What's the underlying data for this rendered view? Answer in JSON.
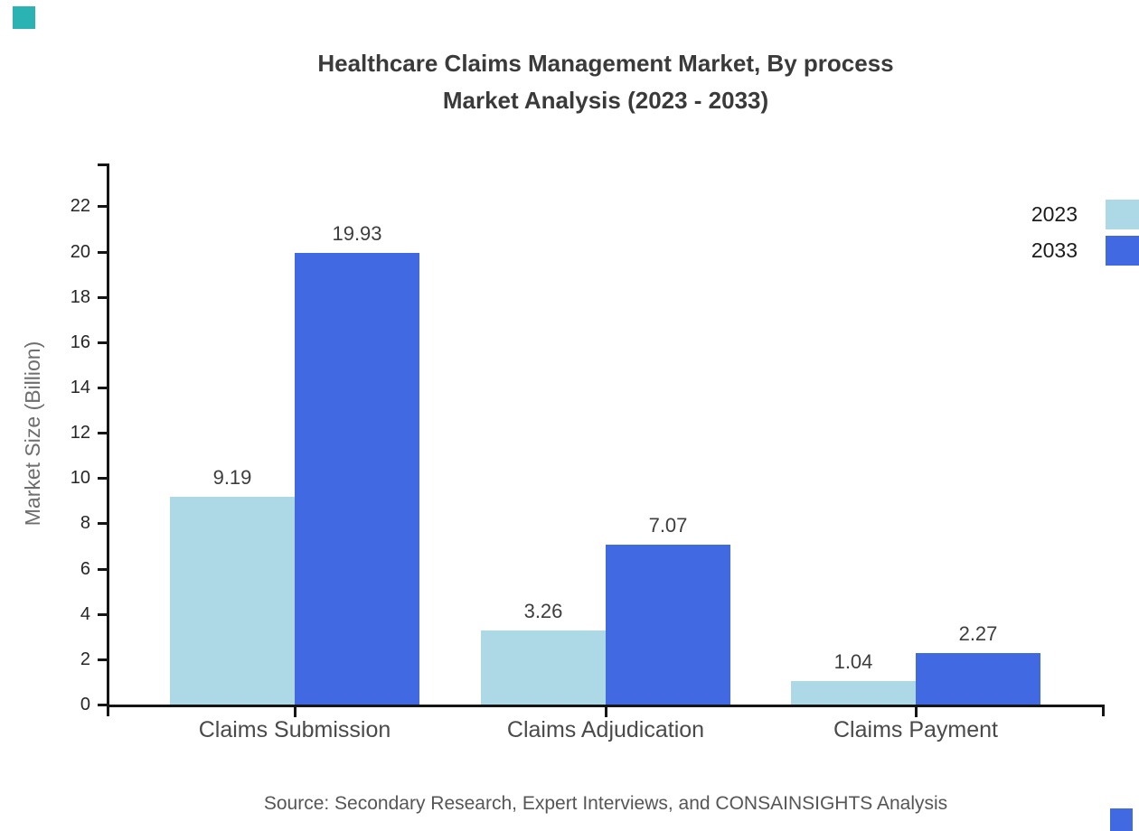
{
  "title": {
    "line1": "Healthcare Claims Management Market, By process",
    "line2": "Market Analysis (2023 - 2033)"
  },
  "source_note": "Source: Secondary Research, Expert Interviews, and CONSAINSIGHTS Analysis",
  "chart_data": {
    "type": "bar",
    "categories": [
      "Claims Submission",
      "Claims Adjudication",
      "Claims Payment"
    ],
    "series": [
      {
        "name": "2023",
        "color": "#ADD8E6",
        "values": [
          9.19,
          3.26,
          1.04
        ]
      },
      {
        "name": "2033",
        "color": "#4169E1",
        "values": [
          19.93,
          7.07,
          2.27
        ]
      }
    ],
    "title": "Healthcare Claims Management Market, By process Market Analysis (2023 - 2033)",
    "xlabel": "",
    "ylabel": "Market Size (Billion)",
    "ylim": [
      0,
      23.9
    ],
    "yticks": [
      0,
      2,
      4,
      6,
      8,
      10,
      12,
      14,
      16,
      18,
      20,
      22
    ],
    "grid": false,
    "legend_position": "top-right",
    "value_labels": [
      "9.19",
      "3.26",
      "1.04",
      "19.93",
      "7.07",
      "2.27"
    ]
  },
  "colors": {
    "axis_line": "#151515",
    "title_text": "#3a3a3a",
    "tick_label": "#262626",
    "category_label": "#4a4a4a",
    "value_label": "#3d3d3d",
    "axis_title": "#6e6e6e",
    "source_text": "#565656",
    "decor_top_left": "#2BB3B4",
    "decor_bottom_right": "#4169E1"
  }
}
